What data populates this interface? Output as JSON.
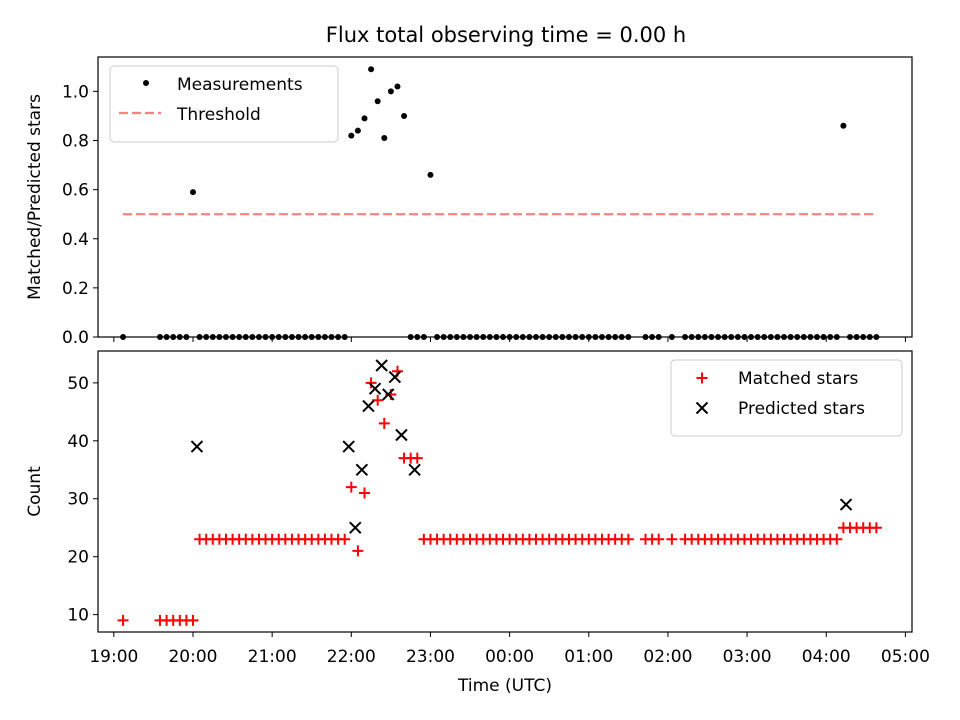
{
  "figure": {
    "title": "Flux total observing time = 0.00 h"
  },
  "chart_data": [
    {
      "type": "scatter",
      "ylabel": "Matched/Predicted stars",
      "xlabel": "",
      "xlim": [
        "18:48",
        "05:05"
      ],
      "ylim": [
        0,
        1.14
      ],
      "yticks": [
        0.0,
        0.2,
        0.4,
        0.6,
        0.8,
        1.0
      ],
      "ytick_labels": [
        "0.0",
        "0.2",
        "0.4",
        "0.6",
        "0.8",
        "1.0"
      ],
      "legend_position": "top-left",
      "series": [
        {
          "name": "Measurements",
          "marker": "dot",
          "color": "#000000",
          "x": [
            "19:07",
            "19:35",
            "19:40",
            "19:45",
            "19:50",
            "19:55",
            "20:00",
            "20:05",
            "20:10",
            "20:15",
            "20:20",
            "20:25",
            "20:30",
            "20:35",
            "20:40",
            "20:45",
            "20:50",
            "20:55",
            "21:00",
            "21:05",
            "21:10",
            "21:15",
            "21:20",
            "21:25",
            "21:30",
            "21:35",
            "21:40",
            "21:45",
            "21:50",
            "21:55",
            "22:00",
            "22:05",
            "22:10",
            "22:15",
            "22:20",
            "22:25",
            "22:30",
            "22:35",
            "22:40",
            "22:45",
            "22:50",
            "22:55",
            "23:00",
            "23:05",
            "23:10",
            "23:15",
            "23:20",
            "23:25",
            "23:30",
            "23:35",
            "23:40",
            "23:45",
            "23:50",
            "23:55",
            "00:00",
            "00:05",
            "00:10",
            "00:15",
            "00:20",
            "00:25",
            "00:30",
            "00:35",
            "00:40",
            "00:45",
            "00:50",
            "00:55",
            "01:00",
            "01:05",
            "01:10",
            "01:15",
            "01:20",
            "01:25",
            "01:30",
            "01:43",
            "01:48",
            "01:53",
            "02:03",
            "02:13",
            "02:18",
            "02:23",
            "02:28",
            "02:33",
            "02:38",
            "02:43",
            "02:48",
            "02:53",
            "02:58",
            "03:03",
            "03:08",
            "03:13",
            "03:18",
            "03:23",
            "03:28",
            "03:33",
            "03:38",
            "03:43",
            "03:48",
            "03:53",
            "03:58",
            "04:03",
            "04:08",
            "04:13",
            "04:18",
            "04:23",
            "04:28",
            "04:33",
            "04:38"
          ],
          "y": [
            0.0,
            0.0,
            0.0,
            0.0,
            0.0,
            0.0,
            0.59,
            0.0,
            0.0,
            0.0,
            0.0,
            0.0,
            0.0,
            0.0,
            0.0,
            0.0,
            0.0,
            0.0,
            0.0,
            0.0,
            0.0,
            0.0,
            0.0,
            0.0,
            0.0,
            0.0,
            0.0,
            0.0,
            0.0,
            0.0,
            0.82,
            0.84,
            0.89,
            1.09,
            0.96,
            0.81,
            1.0,
            1.02,
            0.9,
            0.0,
            0.0,
            0.0,
            0.66,
            0.0,
            0.0,
            0.0,
            0.0,
            0.0,
            0.0,
            0.0,
            0.0,
            0.0,
            0.0,
            0.0,
            0.0,
            0.0,
            0.0,
            0.0,
            0.0,
            0.0,
            0.0,
            0.0,
            0.0,
            0.0,
            0.0,
            0.0,
            0.0,
            0.0,
            0.0,
            0.0,
            0.0,
            0.0,
            0.0,
            0.0,
            0.0,
            0.0,
            0.0,
            0.0,
            0.0,
            0.0,
            0.0,
            0.0,
            0.0,
            0.0,
            0.0,
            0.0,
            0.0,
            0.0,
            0.0,
            0.0,
            0.0,
            0.0,
            0.0,
            0.0,
            0.0,
            0.0,
            0.0,
            0.0,
            0.0,
            0.0,
            0.0,
            0.86,
            0.0,
            0.0,
            0.0,
            0.0,
            0.0
          ]
        },
        {
          "name": "Threshold",
          "marker": "dashed-line",
          "color": "#ff7f7f",
          "x": [
            "19:07",
            "04:38"
          ],
          "y": [
            0.5,
            0.5
          ]
        }
      ]
    },
    {
      "type": "scatter",
      "ylabel": "Count",
      "xlabel": "Time (UTC)",
      "xlim": [
        "18:48",
        "05:05"
      ],
      "ylim": [
        7,
        55.5
      ],
      "yticks": [
        10,
        20,
        30,
        40,
        50
      ],
      "ytick_labels": [
        "10",
        "20",
        "30",
        "40",
        "50"
      ],
      "xticks": [
        "19:00",
        "20:00",
        "21:00",
        "22:00",
        "23:00",
        "00:00",
        "01:00",
        "02:00",
        "03:00",
        "04:00",
        "05:00"
      ],
      "legend_position": "top-right",
      "series": [
        {
          "name": "Matched stars",
          "marker": "plus",
          "color": "#ff0000",
          "x": [
            "19:07",
            "19:35",
            "19:40",
            "19:45",
            "19:50",
            "19:55",
            "20:00",
            "20:05",
            "20:10",
            "20:15",
            "20:20",
            "20:25",
            "20:30",
            "20:35",
            "20:40",
            "20:45",
            "20:50",
            "20:55",
            "21:00",
            "21:05",
            "21:10",
            "21:15",
            "21:20",
            "21:25",
            "21:30",
            "21:35",
            "21:40",
            "21:45",
            "21:50",
            "21:55",
            "22:00",
            "22:05",
            "22:10",
            "22:15",
            "22:20",
            "22:25",
            "22:30",
            "22:35",
            "22:40",
            "22:45",
            "22:50",
            "22:55",
            "23:00",
            "23:05",
            "23:10",
            "23:15",
            "23:20",
            "23:25",
            "23:30",
            "23:35",
            "23:40",
            "23:45",
            "23:50",
            "23:55",
            "00:00",
            "00:05",
            "00:10",
            "00:15",
            "00:20",
            "00:25",
            "00:30",
            "00:35",
            "00:40",
            "00:45",
            "00:50",
            "00:55",
            "01:00",
            "01:05",
            "01:10",
            "01:15",
            "01:20",
            "01:25",
            "01:30",
            "01:43",
            "01:48",
            "01:53",
            "02:03",
            "02:13",
            "02:18",
            "02:23",
            "02:28",
            "02:33",
            "02:38",
            "02:43",
            "02:48",
            "02:53",
            "02:58",
            "03:03",
            "03:08",
            "03:13",
            "03:18",
            "03:23",
            "03:28",
            "03:33",
            "03:38",
            "03:43",
            "03:48",
            "03:53",
            "03:58",
            "04:03",
            "04:08",
            "04:13",
            "04:18",
            "04:23",
            "04:28",
            "04:33",
            "04:38"
          ],
          "y": [
            9,
            9,
            9,
            9,
            9,
            9,
            9,
            23,
            23,
            23,
            23,
            23,
            23,
            23,
            23,
            23,
            23,
            23,
            23,
            23,
            23,
            23,
            23,
            23,
            23,
            23,
            23,
            23,
            23,
            23,
            32,
            21,
            31,
            50,
            47,
            43,
            48,
            52,
            37,
            37,
            37,
            23,
            23,
            23,
            23,
            23,
            23,
            23,
            23,
            23,
            23,
            23,
            23,
            23,
            23,
            23,
            23,
            23,
            23,
            23,
            23,
            23,
            23,
            23,
            23,
            23,
            23,
            23,
            23,
            23,
            23,
            23,
            23,
            23,
            23,
            23,
            23,
            23,
            23,
            23,
            23,
            23,
            23,
            23,
            23,
            23,
            23,
            23,
            23,
            23,
            23,
            23,
            23,
            23,
            23,
            23,
            23,
            23,
            23,
            23,
            23,
            25,
            25,
            25,
            25,
            25,
            25
          ]
        },
        {
          "name": "Predicted stars",
          "marker": "x",
          "color": "#000000",
          "x": [
            "20:03",
            "21:58",
            "22:03",
            "22:08",
            "22:13",
            "22:18",
            "22:23",
            "22:28",
            "22:33",
            "22:38",
            "22:48",
            "04:15"
          ],
          "y": [
            39,
            39,
            25,
            35,
            46,
            49,
            53,
            48,
            51,
            41,
            35,
            29
          ]
        }
      ]
    }
  ]
}
